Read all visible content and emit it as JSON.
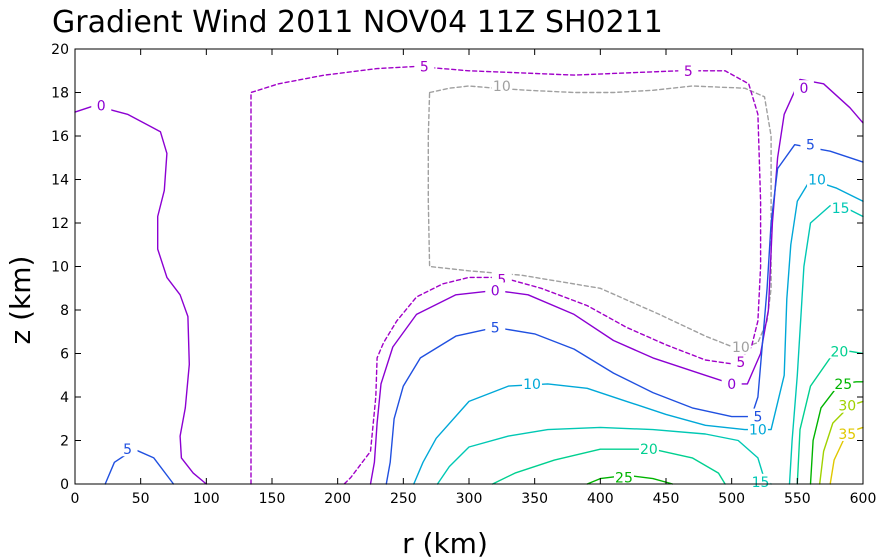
{
  "chart_data": {
    "type": "contour",
    "title": "Gradient Wind 2011 NOV04 11Z  SH0211",
    "xlabel": "r (km)",
    "ylabel": "z (km)",
    "xlim": [
      0,
      600
    ],
    "ylim": [
      0,
      20
    ],
    "x_ticks": [
      "0",
      "50",
      "100",
      "150",
      "200",
      "250",
      "300",
      "350",
      "400",
      "450",
      "500",
      "550",
      "600"
    ],
    "y_ticks": [
      "0",
      "2",
      "4",
      "6",
      "8",
      "10",
      "12",
      "14",
      "16",
      "18",
      "20"
    ],
    "grid": false,
    "colors": {
      "-10": "#a0a0a0",
      "-5": "#a000c8",
      "0": "#8c00d2",
      "5": "#2050e0",
      "10": "#00a8d8",
      "15": "#00c8b4",
      "20": "#00d090",
      "25": "#00b400",
      "30": "#a0d200",
      "35": "#e0c800"
    },
    "contours": [
      {
        "level": -10,
        "label": "10",
        "dashed": true,
        "points": [
          [
            270,
            18
          ],
          [
            285,
            18.2
          ],
          [
            300,
            18.3
          ],
          [
            320,
            18.2
          ],
          [
            345,
            18.1
          ],
          [
            380,
            18.0
          ],
          [
            410,
            18.0
          ],
          [
            440,
            18.1
          ],
          [
            470,
            18.3
          ],
          [
            510,
            18.2
          ],
          [
            525,
            17.8
          ],
          [
            530,
            16
          ],
          [
            530,
            12
          ],
          [
            530,
            9
          ],
          [
            527,
            7.5
          ],
          [
            520,
            6.5
          ],
          [
            505,
            6.2
          ],
          [
            480,
            6.8
          ],
          [
            445,
            7.8
          ],
          [
            400,
            9.0
          ],
          [
            340,
            9.6
          ],
          [
            300,
            9.8
          ],
          [
            270,
            10
          ],
          [
            269,
            13
          ],
          [
            269,
            16
          ],
          [
            270,
            18
          ]
        ],
        "labels": [
          [
            325,
            18.3
          ],
          [
            507,
            6.3
          ]
        ]
      },
      {
        "level": -5,
        "label": "5",
        "dashed": true,
        "points": [
          [
            134,
            0
          ],
          [
            134,
            5
          ],
          [
            134,
            10
          ],
          [
            134,
            15
          ],
          [
            134,
            18
          ],
          [
            155,
            18.4
          ],
          [
            190,
            18.8
          ],
          [
            230,
            19.1
          ],
          [
            260,
            19.2
          ],
          [
            300,
            19.0
          ],
          [
            340,
            18.9
          ],
          [
            380,
            18.8
          ],
          [
            420,
            18.9
          ],
          [
            460,
            19.0
          ],
          [
            495,
            19.0
          ],
          [
            513,
            18.4
          ],
          [
            520,
            17
          ],
          [
            522,
            13
          ],
          [
            522,
            10
          ],
          [
            520,
            7.5
          ],
          [
            515,
            6.3
          ],
          [
            503,
            5.5
          ],
          [
            480,
            5.7
          ],
          [
            450,
            6.4
          ],
          [
            420,
            7.2
          ],
          [
            390,
            8.2
          ],
          [
            355,
            9.0
          ],
          [
            325,
            9.5
          ],
          [
            300,
            9.5
          ],
          [
            280,
            9.2
          ],
          [
            260,
            8.6
          ],
          [
            245,
            7.5
          ],
          [
            235,
            6.5
          ],
          [
            230,
            5.8
          ],
          [
            229,
            4.0
          ],
          [
            225,
            1.5
          ],
          [
            210,
            0.3
          ],
          [
            205,
            0
          ]
        ],
        "labels": [
          [
            266,
            19.2
          ],
          [
            467,
            19.0
          ],
          [
            325,
            9.4
          ],
          [
            507,
            5.6
          ]
        ]
      },
      {
        "level": 0,
        "label": "0",
        "dashed": false,
        "points": [
          [
            0,
            17.1
          ],
          [
            15,
            17.4
          ],
          [
            40,
            17.0
          ],
          [
            65,
            16.2
          ],
          [
            70,
            15.2
          ],
          [
            68,
            13.5
          ],
          [
            63,
            12.3
          ],
          [
            63,
            10.8
          ],
          [
            70,
            9.5
          ],
          [
            80,
            8.7
          ],
          [
            86,
            7.7
          ],
          [
            87,
            5.5
          ],
          [
            84,
            3.5
          ],
          [
            80,
            2.2
          ],
          [
            81,
            1.2
          ],
          [
            90,
            0.5
          ],
          [
            100,
            0
          ]
        ],
        "labels": [
          [
            20,
            17.4
          ]
        ]
      },
      {
        "level": 0,
        "label": "0",
        "dashed": false,
        "points": [
          [
            225,
            0
          ],
          [
            228,
            1.0
          ],
          [
            230,
            2.8
          ],
          [
            233,
            4.6
          ],
          [
            242,
            6.3
          ],
          [
            260,
            7.8
          ],
          [
            290,
            8.7
          ],
          [
            320,
            8.9
          ],
          [
            345,
            8.7
          ],
          [
            380,
            7.8
          ],
          [
            410,
            6.6
          ],
          [
            440,
            5.8
          ],
          [
            480,
            5.0
          ],
          [
            500,
            4.6
          ],
          [
            512,
            4.6
          ],
          [
            522,
            6.0
          ],
          [
            528,
            8.0
          ],
          [
            531,
            12.0
          ],
          [
            535,
            15.0
          ],
          [
            540,
            17.0
          ],
          [
            552,
            18.6
          ],
          [
            570,
            18.4
          ],
          [
            590,
            17.3
          ],
          [
            600,
            16.6
          ]
        ],
        "labels": [
          [
            320,
            8.9
          ],
          [
            500,
            4.6
          ],
          [
            555,
            18.2
          ]
        ]
      },
      {
        "level": 5,
        "label": "5",
        "dashed": false,
        "points": [
          [
            23,
            0
          ],
          [
            30,
            1.0
          ],
          [
            45,
            1.6
          ],
          [
            60,
            1.2
          ],
          [
            75,
            0
          ]
        ],
        "labels": [
          [
            40,
            1.6
          ]
        ]
      },
      {
        "level": 5,
        "label": "5",
        "dashed": false,
        "points": [
          [
            237,
            0
          ],
          [
            240,
            1.0
          ],
          [
            243,
            3.0
          ],
          [
            250,
            4.5
          ],
          [
            263,
            5.8
          ],
          [
            290,
            6.8
          ],
          [
            320,
            7.2
          ],
          [
            350,
            6.9
          ],
          [
            380,
            6.2
          ],
          [
            410,
            5.1
          ],
          [
            440,
            4.2
          ],
          [
            470,
            3.5
          ],
          [
            500,
            3.1
          ],
          [
            515,
            3.1
          ],
          [
            520,
            4.0
          ],
          [
            527,
            9.0
          ],
          [
            530,
            12.0
          ],
          [
            535,
            14.5
          ],
          [
            548,
            15.6
          ],
          [
            575,
            15.3
          ],
          [
            600,
            14.8
          ]
        ],
        "labels": [
          [
            320,
            7.2
          ],
          [
            520,
            3.1
          ],
          [
            560,
            15.6
          ]
        ]
      },
      {
        "level": 10,
        "label": "10",
        "dashed": false,
        "points": [
          [
            258,
            0
          ],
          [
            265,
            1.0
          ],
          [
            275,
            2.1
          ],
          [
            300,
            3.8
          ],
          [
            330,
            4.5
          ],
          [
            360,
            4.6
          ],
          [
            390,
            4.4
          ],
          [
            420,
            3.8
          ],
          [
            450,
            3.2
          ],
          [
            480,
            2.7
          ],
          [
            510,
            2.5
          ],
          [
            530,
            2.5
          ],
          [
            540,
            5.0
          ],
          [
            542,
            8.5
          ],
          [
            545,
            11.0
          ],
          [
            550,
            13.0
          ],
          [
            560,
            14.0
          ],
          [
            580,
            13.6
          ],
          [
            600,
            13.0
          ]
        ],
        "labels": [
          [
            348,
            4.6
          ],
          [
            520,
            2.5
          ],
          [
            565,
            14.0
          ]
        ]
      },
      {
        "level": 15,
        "label": "15",
        "dashed": false,
        "points": [
          [
            276,
            0
          ],
          [
            285,
            0.8
          ],
          [
            300,
            1.7
          ],
          [
            330,
            2.2
          ],
          [
            360,
            2.5
          ],
          [
            400,
            2.6
          ],
          [
            440,
            2.5
          ],
          [
            480,
            2.3
          ],
          [
            505,
            2.0
          ],
          [
            520,
            1.2
          ],
          [
            525,
            0.2
          ],
          [
            530,
            0
          ]
        ],
        "labels": []
      },
      {
        "level": 15,
        "label": "15",
        "dashed": false,
        "points": [
          [
            544,
            0
          ],
          [
            546,
            2.0
          ],
          [
            550,
            5.0
          ],
          [
            553,
            8.0
          ],
          [
            555,
            10.0
          ],
          [
            560,
            12.0
          ],
          [
            575,
            12.8
          ],
          [
            590,
            12.6
          ],
          [
            600,
            12.3
          ]
        ],
        "labels": [
          [
            522,
            0.1
          ],
          [
            583,
            12.7
          ]
        ]
      },
      {
        "level": 20,
        "label": "20",
        "dashed": false,
        "points": [
          [
            318,
            0
          ],
          [
            335,
            0.5
          ],
          [
            365,
            1.1
          ],
          [
            400,
            1.6
          ],
          [
            440,
            1.6
          ],
          [
            470,
            1.2
          ],
          [
            490,
            0.5
          ],
          [
            495,
            0
          ]
        ],
        "labels": [
          [
            437,
            1.6
          ]
        ]
      },
      {
        "level": 20,
        "label": "20",
        "dashed": false,
        "points": [
          [
            550,
            0
          ],
          [
            552,
            2.5
          ],
          [
            560,
            4.5
          ],
          [
            575,
            5.8
          ],
          [
            590,
            6.1
          ],
          [
            600,
            6.0
          ]
        ],
        "labels": [
          [
            582,
            6.1
          ]
        ]
      },
      {
        "level": 25,
        "label": "25",
        "dashed": false,
        "points": [
          [
            390,
            0
          ],
          [
            400,
            0.25
          ],
          [
            420,
            0.4
          ],
          [
            440,
            0.25
          ],
          [
            455,
            0
          ]
        ],
        "labels": [
          [
            418,
            0.3
          ]
        ]
      },
      {
        "level": 25,
        "label": "25",
        "dashed": false,
        "points": [
          [
            560,
            0
          ],
          [
            562,
            2.0
          ],
          [
            568,
            3.5
          ],
          [
            582,
            4.6
          ],
          [
            595,
            4.7
          ],
          [
            600,
            4.7
          ]
        ],
        "labels": [
          [
            585,
            4.6
          ]
        ]
      },
      {
        "level": 30,
        "label": "30",
        "dashed": false,
        "points": [
          [
            567,
            0
          ],
          [
            570,
            1.5
          ],
          [
            577,
            2.8
          ],
          [
            590,
            3.6
          ],
          [
            600,
            3.8
          ]
        ],
        "labels": [
          [
            588,
            3.6
          ]
        ]
      },
      {
        "level": 35,
        "label": "35",
        "dashed": false,
        "points": [
          [
            575,
            0
          ],
          [
            578,
            1.1
          ],
          [
            585,
            2.0
          ],
          [
            595,
            2.5
          ],
          [
            600,
            2.6
          ]
        ],
        "labels": [
          [
            588,
            2.3
          ]
        ]
      }
    ]
  }
}
